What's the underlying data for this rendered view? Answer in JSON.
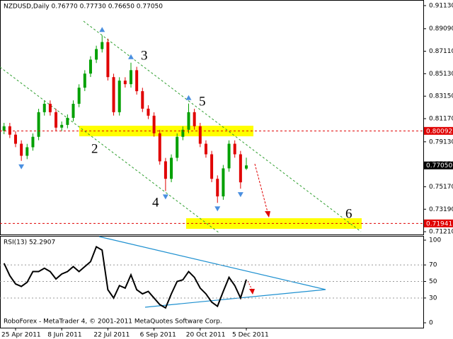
{
  "chart_data": [
    {
      "type": "candlestick",
      "title": "NZDUSD,Daily  0.76770 0.77730 0.76650 0.77050",
      "categories": [
        null,
        null,
        "25 Apr 2011",
        null,
        null,
        null,
        null,
        null,
        null,
        null,
        "8 Jun 2011",
        null,
        null,
        null,
        null,
        null,
        null,
        null,
        "22 Jul 2011",
        null,
        null,
        null,
        null,
        null,
        null,
        null,
        "6 Sep 2011",
        null,
        null,
        null,
        null,
        null,
        null,
        null,
        "20 Oct 2011",
        null,
        null,
        null,
        null,
        null,
        null,
        null,
        "5 Dec 2011"
      ],
      "open": [
        0.801,
        0.805,
        0.7976,
        0.7896,
        0.779,
        0.7865,
        0.7957,
        0.8174,
        0.8248,
        0.8174,
        0.8038,
        0.8062,
        0.8124,
        0.8248,
        0.839,
        0.8514,
        0.8637,
        0.873,
        0.8792,
        0.8483,
        0.8174,
        0.8452,
        0.8421,
        0.8544,
        0.8359,
        0.8205,
        0.8143,
        0.7988,
        0.7741,
        0.7587,
        0.7772,
        0.7957,
        0.8019,
        0.8174,
        0.805,
        0.7896,
        0.7803,
        0.7587,
        0.7432,
        0.7679,
        0.7896,
        0.7803,
        0.7677
      ],
      "high": [
        0.808,
        0.808,
        0.8006,
        0.7926,
        0.7895,
        0.7987,
        0.8204,
        0.8278,
        0.8278,
        0.8204,
        0.8092,
        0.8154,
        0.8278,
        0.842,
        0.8544,
        0.8667,
        0.876,
        0.885,
        0.8822,
        0.8513,
        0.8482,
        0.8482,
        0.861,
        0.8574,
        0.8389,
        0.8235,
        0.8173,
        0.8018,
        0.7771,
        0.7802,
        0.7987,
        0.8049,
        0.825,
        0.8204,
        0.808,
        0.7926,
        0.7833,
        0.7617,
        0.7709,
        0.7926,
        0.7926,
        0.7833,
        0.7773
      ],
      "low": [
        0.798,
        0.7946,
        0.7866,
        0.7745,
        0.776,
        0.7835,
        0.7927,
        0.8144,
        0.8144,
        0.8008,
        0.8008,
        0.8032,
        0.8094,
        0.8218,
        0.836,
        0.8484,
        0.8607,
        0.87,
        0.8453,
        0.8144,
        0.8144,
        0.8391,
        0.8391,
        0.8329,
        0.8175,
        0.8113,
        0.7958,
        0.7711,
        0.748,
        0.7557,
        0.7742,
        0.7927,
        0.7989,
        0.802,
        0.7866,
        0.7773,
        0.7557,
        0.7375,
        0.7402,
        0.7649,
        0.7773,
        0.75,
        0.7665
      ],
      "close": [
        0.805,
        0.7976,
        0.7896,
        0.779,
        0.7865,
        0.7957,
        0.8174,
        0.8248,
        0.8174,
        0.8038,
        0.8062,
        0.8124,
        0.8248,
        0.839,
        0.8514,
        0.8637,
        0.873,
        0.8792,
        0.8483,
        0.8174,
        0.8452,
        0.8421,
        0.8544,
        0.8359,
        0.8205,
        0.8143,
        0.7988,
        0.7741,
        0.7587,
        0.7772,
        0.7957,
        0.8019,
        0.8174,
        0.805,
        0.7896,
        0.7803,
        0.7587,
        0.7432,
        0.7679,
        0.7896,
        0.7803,
        0.7556,
        0.7705
      ],
      "up_color": "#00a000",
      "down_color": "#e00000",
      "fractal_color": "#4a8fe0",
      "ylim": [
        0.7109,
        0.915
      ],
      "yticks": [
        {
          "value": 0.9113,
          "label": "0.91130"
        },
        {
          "value": 0.8909,
          "label": "0.89090"
        },
        {
          "value": 0.8711,
          "label": "0.87110"
        },
        {
          "value": 0.8513,
          "label": "0.85130"
        },
        {
          "value": 0.8315,
          "label": "0.83150"
        },
        {
          "value": 0.8117,
          "label": "0.81170"
        },
        {
          "value": 0.7913,
          "label": "0.79130"
        },
        {
          "value": 0.7715,
          "label": "0.77150"
        },
        {
          "value": 0.7517,
          "label": "0.75170"
        },
        {
          "value": 0.7319,
          "label": "0.73190"
        },
        {
          "value": 0.7121,
          "label": "0.71210"
        }
      ],
      "levels": [
        0.80092,
        {
          "value": 0.7705,
          "label": "0.77050"
        },
        0.71941
      ],
      "level_colors": [
        "#e00000",
        "#000000",
        "#e00000"
      ],
      "level_lines": [
        true,
        false,
        true
      ],
      "annotations": [
        "2",
        "3",
        "4",
        "5",
        "6"
      ]
    },
    {
      "type": "line",
      "title": "RSI(13) 52.2907",
      "values": [
        72,
        57,
        47,
        44,
        49,
        62,
        62,
        66,
        62,
        53,
        59,
        62,
        68,
        62,
        68,
        74,
        92,
        88,
        40,
        30,
        45,
        42,
        58,
        40,
        35,
        38,
        30,
        22,
        18,
        35,
        50,
        52,
        62,
        55,
        42,
        35,
        25,
        20,
        38,
        55,
        45,
        30,
        52.2907
      ],
      "color": "#000000",
      "ylim": [
        -6.8,
        104.3
      ],
      "yticks": [
        100,
        70,
        50,
        30,
        0
      ]
    }
  ],
  "footer": "RoboForex - MetaTrader 4, © 2001-2011 MetaQuotes Software Corp."
}
